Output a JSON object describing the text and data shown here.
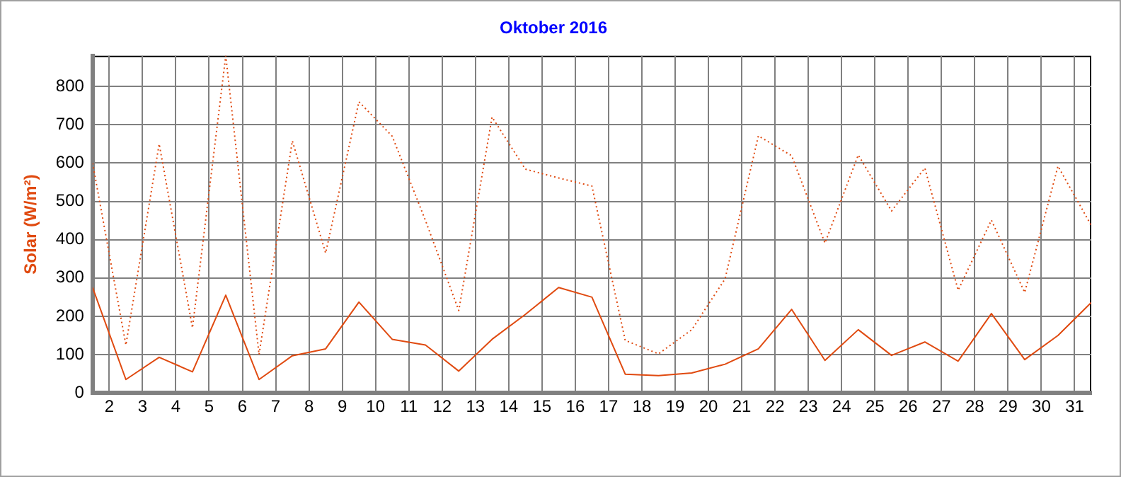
{
  "chart_data": {
    "type": "line",
    "title": "Oktober 2016",
    "ylabel": "Solar (W/m²)",
    "x": [
      1.5,
      2.5,
      3.5,
      4.5,
      5.5,
      6.5,
      7.5,
      8.5,
      9.5,
      10.5,
      11.5,
      12.5,
      13.5,
      14.5,
      15.5,
      16.5,
      17.5,
      18.5,
      19.5,
      20.5,
      21.5,
      22.5,
      23.5,
      24.5,
      25.5,
      26.5,
      27.5,
      28.5,
      29.5,
      30.5,
      31.5
    ],
    "series": [
      {
        "color": "#e04a10",
        "line_style": "solid",
        "values": [
          275,
          35,
          93,
          55,
          255,
          35,
          97,
          115,
          237,
          140,
          125,
          57,
          140,
          205,
          275,
          250,
          49,
          45,
          52,
          75,
          115,
          218,
          85,
          165,
          98,
          133,
          83,
          207,
          87,
          150,
          236
        ]
      },
      {
        "color": "#e04a10",
        "line_style": "dotted",
        "values": [
          600,
          125,
          650,
          170,
          880,
          100,
          658,
          365,
          760,
          670,
          450,
          215,
          720,
          584,
          561,
          540,
          137,
          102,
          165,
          298,
          671,
          619,
          391,
          621,
          475,
          587,
          268,
          451,
          262,
          592,
          437
        ]
      }
    ],
    "xlim": [
      1.5,
      31.5
    ],
    "xticks": [
      2,
      3,
      4,
      5,
      6,
      7,
      8,
      9,
      10,
      11,
      12,
      13,
      14,
      15,
      16,
      17,
      18,
      19,
      20,
      21,
      22,
      23,
      24,
      25,
      26,
      27,
      28,
      29,
      30,
      31
    ],
    "ylim": [
      0,
      880
    ],
    "yticks": [
      0,
      100,
      200,
      300,
      400,
      500,
      600,
      700,
      800
    ],
    "grid": true,
    "legend": false,
    "marker": "none"
  }
}
